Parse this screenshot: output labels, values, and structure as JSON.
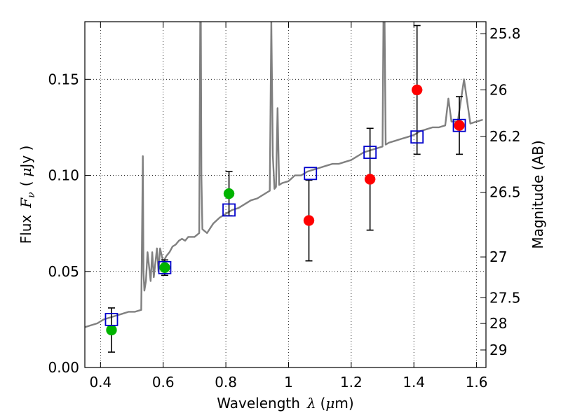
{
  "chart_data": {
    "type": "scatter",
    "xlabel": {
      "main": "Wavelength",
      "symbol": "λ",
      "unit_open": "(",
      "unit_mu": "μ",
      "unit_rest": "m)"
    },
    "ylabel": {
      "main": "Flux",
      "symbol": "F",
      "sub": "ν",
      "unit_open": "(",
      "unit_mu": "μ",
      "unit_rest": "Jy )"
    },
    "y2label": "Magnitude (AB)",
    "xlim": [
      0.35,
      1.63
    ],
    "ylim": [
      0.0,
      0.18
    ],
    "grid": true,
    "x_ticks": [
      {
        "value": 0.4,
        "label": "0.4"
      },
      {
        "value": 0.6,
        "label": "0.6"
      },
      {
        "value": 0.8,
        "label": "0.8"
      },
      {
        "value": 1.0,
        "label": "1"
      },
      {
        "value": 1.2,
        "label": "1.2"
      },
      {
        "value": 1.4,
        "label": "1.4"
      },
      {
        "value": 1.6,
        "label": "1.6"
      }
    ],
    "y_ticks": [
      {
        "value": 0.0,
        "label": "0.00"
      },
      {
        "value": 0.05,
        "label": "0.05"
      },
      {
        "value": 0.1,
        "label": "0.10"
      },
      {
        "value": 0.15,
        "label": "0.15"
      }
    ],
    "y2_ticks": [
      {
        "value": 25.8,
        "label": "25.8"
      },
      {
        "value": 26.0,
        "label": "26"
      },
      {
        "value": 26.2,
        "label": "26.2"
      },
      {
        "value": 26.5,
        "label": "26.5"
      },
      {
        "value": 27.0,
        "label": "27"
      },
      {
        "value": 27.5,
        "label": "27.5"
      },
      {
        "value": 28.0,
        "label": "28"
      },
      {
        "value": 29.0,
        "label": "29"
      }
    ],
    "series": [
      {
        "kind": "line",
        "color": "#808080",
        "x": [
          0.35,
          0.37,
          0.39,
          0.41,
          0.43,
          0.45,
          0.47,
          0.49,
          0.51,
          0.53,
          0.535,
          0.537,
          0.54,
          0.545,
          0.55,
          0.56,
          0.565,
          0.57,
          0.58,
          0.585,
          0.59,
          0.6,
          0.61,
          0.62,
          0.63,
          0.64,
          0.65,
          0.66,
          0.67,
          0.68,
          0.7,
          0.715,
          0.718,
          0.72,
          0.722,
          0.725,
          0.74,
          0.76,
          0.78,
          0.8,
          0.82,
          0.84,
          0.86,
          0.88,
          0.9,
          0.92,
          0.94,
          0.945,
          0.95,
          0.955,
          0.96,
          0.965,
          0.97,
          0.98,
          1.0,
          1.02,
          1.04,
          1.06,
          1.08,
          1.1,
          1.12,
          1.14,
          1.16,
          1.18,
          1.2,
          1.22,
          1.24,
          1.26,
          1.28,
          1.3,
          1.303,
          1.306,
          1.31,
          1.32,
          1.34,
          1.36,
          1.38,
          1.4,
          1.42,
          1.44,
          1.46,
          1.48,
          1.5,
          1.51,
          1.52,
          1.54,
          1.56,
          1.58,
          1.6,
          1.62
        ],
        "y": [
          0.021,
          0.022,
          0.023,
          0.025,
          0.026,
          0.027,
          0.028,
          0.029,
          0.029,
          0.03,
          0.11,
          0.05,
          0.04,
          0.045,
          0.06,
          0.045,
          0.06,
          0.047,
          0.062,
          0.05,
          0.062,
          0.055,
          0.058,
          0.06,
          0.063,
          0.064,
          0.066,
          0.067,
          0.066,
          0.068,
          0.068,
          0.07,
          0.18,
          0.19,
          0.1,
          0.072,
          0.07,
          0.075,
          0.078,
          0.08,
          0.082,
          0.083,
          0.085,
          0.087,
          0.088,
          0.09,
          0.092,
          0.18,
          0.11,
          0.093,
          0.094,
          0.135,
          0.095,
          0.096,
          0.097,
          0.1,
          0.1,
          0.102,
          0.103,
          0.104,
          0.105,
          0.106,
          0.106,
          0.107,
          0.108,
          0.11,
          0.112,
          0.113,
          0.114,
          0.115,
          0.185,
          0.19,
          0.116,
          0.117,
          0.118,
          0.119,
          0.12,
          0.121,
          0.123,
          0.124,
          0.125,
          0.125,
          0.126,
          0.14,
          0.128,
          0.128,
          0.15,
          0.127,
          0.128,
          0.129
        ]
      },
      {
        "kind": "points",
        "marker": "circle",
        "color": "#00b400",
        "x": [
          0.435,
          0.605,
          0.81
        ],
        "y": [
          0.0195,
          0.052,
          0.0905
        ],
        "err": [
          0.0115,
          0.004,
          0.0115
        ]
      },
      {
        "kind": "points",
        "marker": "circle",
        "color": "#ff0000",
        "x": [
          1.065,
          1.26,
          1.41,
          1.545
        ],
        "y": [
          0.0765,
          0.098,
          0.1445,
          0.126
        ],
        "err": [
          0.021,
          0.0265,
          0.0335,
          0.015
        ]
      },
      {
        "kind": "points",
        "marker": "open-square",
        "color": "#0000cc",
        "x": [
          0.435,
          0.605,
          0.81,
          1.07,
          1.26,
          1.41,
          1.545
        ],
        "y": [
          0.025,
          0.052,
          0.082,
          0.101,
          0.112,
          0.12,
          0.126
        ]
      }
    ]
  }
}
